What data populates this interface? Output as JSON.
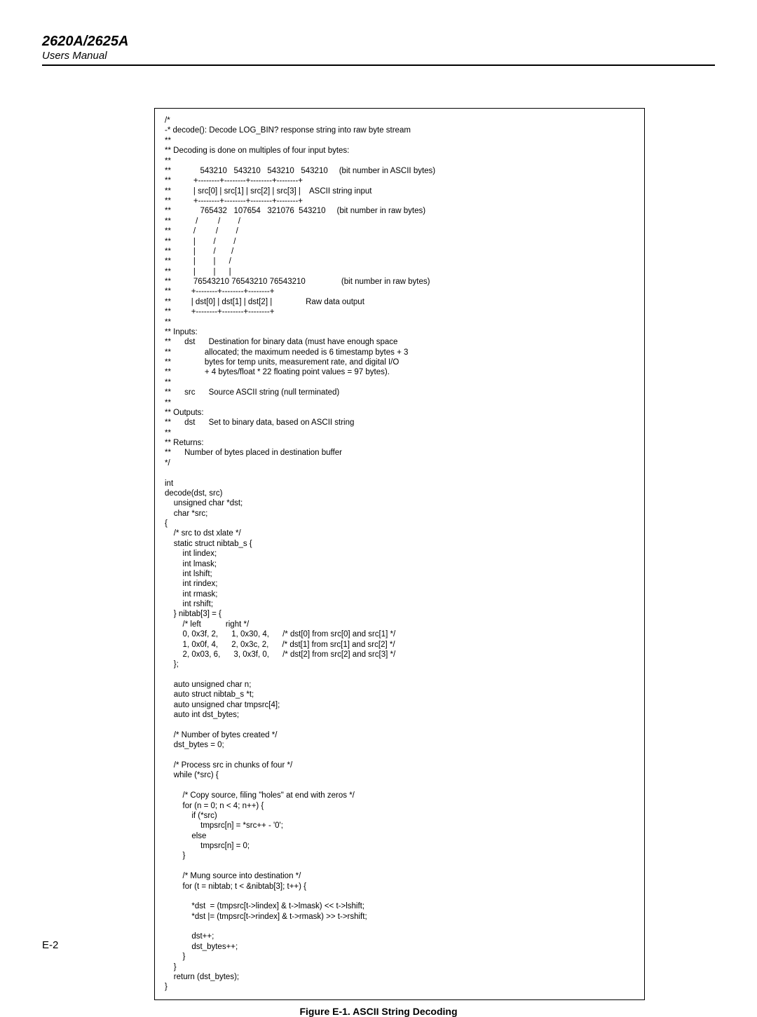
{
  "header": {
    "model": "2620A/2625A",
    "manual": "Users Manual"
  },
  "code": {
    "text": "/*\n-* decode(): Decode LOG_BIN? response string into raw byte stream\n**\n** Decoding is done on multiples of four input bytes:\n**\n**             543210   543210   543210   543210     (bit number in ASCII bytes)\n**          +--------+--------+--------+--------+\n**          | src[0] | src[1] | src[2] | src[3] |    ASCII string input\n**          +--------+--------+--------+--------+\n**             765432   107654   321076  543210     (bit number in raw bytes)\n**           /         /        /\n**          /         /        /\n**          |        /        /\n**          |        /       /\n**          |        |      /\n**          |        |      |\n**          76543210 76543210 76543210                (bit number in raw bytes)\n**         +--------+--------+--------+\n**         | dst[0] | dst[1] | dst[2] |               Raw data output\n**         +--------+--------+--------+\n**\n** Inputs:\n**      dst      Destination for binary data (must have enough space\n**               allocated; the maximum needed is 6 timestamp bytes + 3\n**               bytes for temp units, measurement rate, and digital I/O\n**               + 4 bytes/float * 22 floating point values = 97 bytes).\n**\n**      src      Source ASCII string (null terminated)\n**\n** Outputs:\n**      dst      Set to binary data, based on ASCII string\n**\n** Returns:\n**      Number of bytes placed in destination buffer\n*/\n\nint\ndecode(dst, src)\n    unsigned char *dst;\n    char *src;\n{\n    /* src to dst xlate */\n    static struct nibtab_s {\n        int lindex;\n        int lmask;\n        int lshift;\n        int rindex;\n        int rmask;\n        int rshift;\n    } nibtab[3] = {\n        /* left           right */\n        0, 0x3f, 2,      1, 0x30, 4,      /* dst[0] from src[0] and src[1] */\n        1, 0x0f, 4,      2, 0x3c, 2,      /* dst[1] from src[1] and src[2] */\n        2, 0x03, 6,      3, 0x3f, 0,      /* dst[2] from src[2] and src[3] */\n    };\n\n    auto unsigned char n;\n    auto struct nibtab_s *t;\n    auto unsigned char tmpsrc[4];\n    auto int dst_bytes;\n\n    /* Number of bytes created */\n    dst_bytes = 0;\n\n    /* Process src in chunks of four */\n    while (*src) {\n\n        /* Copy source, filing \"holes\" at end with zeros */\n        for (n = 0; n < 4; n++) {\n            if (*src)\n                tmpsrc[n] = *src++ - '0';\n            else\n                tmpsrc[n] = 0;\n        }\n\n        /* Mung source into destination */\n        for (t = nibtab; t < &nibtab[3]; t++) {\n\n            *dst  = (tmpsrc[t->lindex] & t->lmask) << t->lshift;\n            *dst |= (tmpsrc[t->rindex] & t->rmask) >> t->rshift;\n\n            dst++;\n            dst_bytes++;\n        }\n    }\n    return (dst_bytes);\n}"
  },
  "caption": "Figure E-1. ASCII String Decoding",
  "pageNumber": "E-2"
}
